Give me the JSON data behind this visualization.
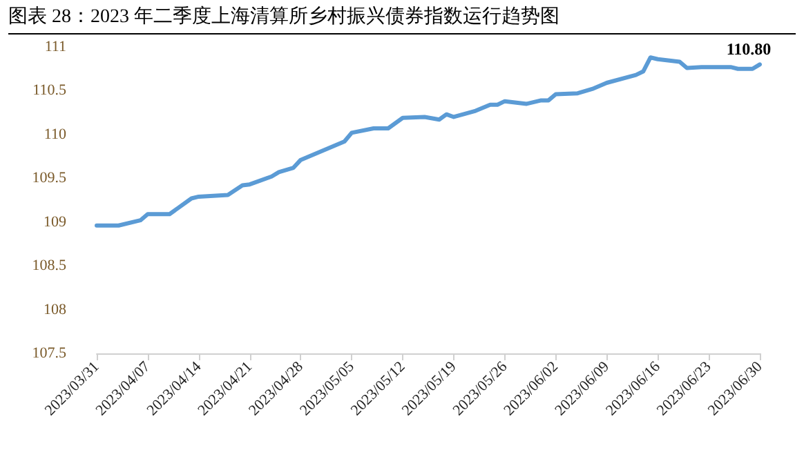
{
  "chart_data": {
    "type": "line",
    "title": "图表 28：2023 年二季度上海清算所乡村振兴债券指数运行趋势图",
    "x": [
      "2023-03-31",
      "2023-04-03",
      "2023-04-06",
      "2023-04-07",
      "2023-04-10",
      "2023-04-13",
      "2023-04-14",
      "2023-04-18",
      "2023-04-20",
      "2023-04-21",
      "2023-04-24",
      "2023-04-25",
      "2023-04-27",
      "2023-04-28",
      "2023-05-04",
      "2023-05-05",
      "2023-05-08",
      "2023-05-10",
      "2023-05-12",
      "2023-05-15",
      "2023-05-17",
      "2023-05-18",
      "2023-05-19",
      "2023-05-22",
      "2023-05-24",
      "2023-05-25",
      "2023-05-26",
      "2023-05-29",
      "2023-05-31",
      "2023-06-01",
      "2023-06-02",
      "2023-06-05",
      "2023-06-07",
      "2023-06-09",
      "2023-06-13",
      "2023-06-14",
      "2023-06-15",
      "2023-06-16",
      "2023-06-19",
      "2023-06-20",
      "2023-06-22",
      "2023-06-26",
      "2023-06-27",
      "2023-06-29",
      "2023-06-30"
    ],
    "series": [
      {
        "color": "#5b9bd5",
        "values": [
          108.96,
          108.96,
          109.02,
          109.09,
          109.09,
          109.27,
          109.29,
          109.31,
          109.42,
          109.43,
          109.52,
          109.57,
          109.62,
          109.71,
          109.92,
          110.02,
          110.07,
          110.07,
          110.19,
          110.2,
          110.17,
          110.23,
          110.2,
          110.27,
          110.34,
          110.34,
          110.38,
          110.35,
          110.39,
          110.39,
          110.46,
          110.47,
          110.52,
          110.59,
          110.68,
          110.72,
          110.88,
          110.86,
          110.83,
          110.76,
          110.77,
          110.77,
          110.75,
          110.75,
          110.8
        ],
        "value_labels": [
          null,
          null,
          null,
          null,
          null,
          null,
          null,
          null,
          null,
          null,
          null,
          null,
          null,
          null,
          null,
          null,
          null,
          null,
          null,
          null,
          null,
          null,
          null,
          null,
          null,
          null,
          null,
          null,
          null,
          null,
          null,
          null,
          null,
          null,
          null,
          null,
          null,
          null,
          null,
          null,
          null,
          null,
          null,
          null,
          "110.80"
        ]
      }
    ],
    "xlim": [
      "2023-03-31",
      "2023-06-30"
    ],
    "xticks": [
      {
        "value": "2023-03-31",
        "label": "2023/03/31"
      },
      {
        "value": "2023-04-07",
        "label": "2023/04/07"
      },
      {
        "value": "2023-04-14",
        "label": "2023/04/14"
      },
      {
        "value": "2023-04-21",
        "label": "2023/04/21"
      },
      {
        "value": "2023-04-28",
        "label": "2023/04/28"
      },
      {
        "value": "2023-05-05",
        "label": "2023/05/05"
      },
      {
        "value": "2023-05-12",
        "label": "2023/05/12"
      },
      {
        "value": "2023-05-19",
        "label": "2023/05/19"
      },
      {
        "value": "2023-05-26",
        "label": "2023/05/26"
      },
      {
        "value": "2023-06-02",
        "label": "2023/06/02"
      },
      {
        "value": "2023-06-09",
        "label": "2023/06/09"
      },
      {
        "value": "2023-06-16",
        "label": "2023/06/16"
      },
      {
        "value": "2023-06-23",
        "label": "2023/06/23"
      },
      {
        "value": "2023-06-30",
        "label": "2023/06/30"
      }
    ],
    "ylim": [
      107.5,
      111
    ],
    "yticks": [
      107.5,
      108,
      108.5,
      109,
      109.5,
      110,
      110.5,
      111
    ],
    "grid": false,
    "marker": "none",
    "line_style": "solid"
  }
}
